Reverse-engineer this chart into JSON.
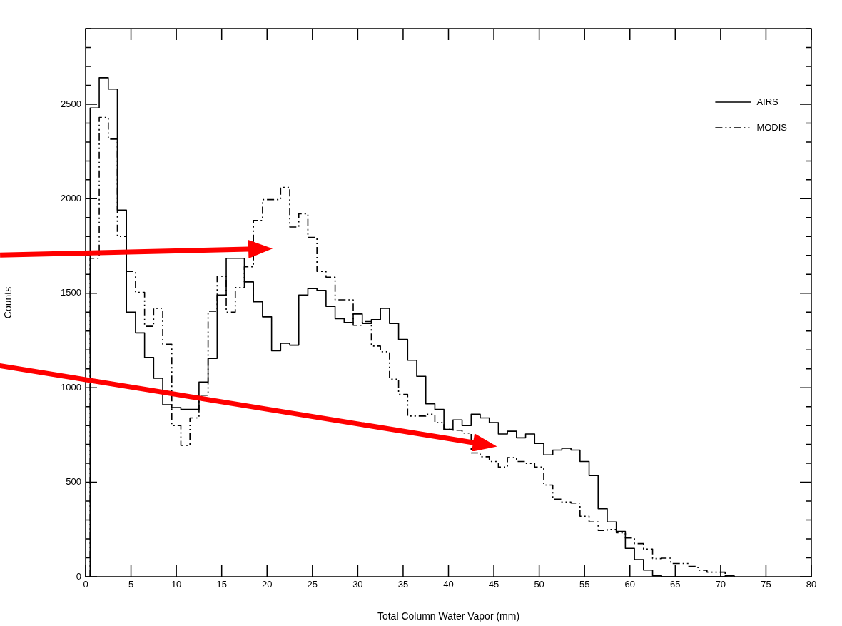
{
  "chart_data": {
    "type": "histogram",
    "xlabel": "Total Column Water Vapor (mm)",
    "ylabel": "Counts",
    "legend": "top right",
    "bins": [
      0.5,
      1.5,
      2.5,
      3.5,
      4.5,
      5.5,
      6.5,
      7.5,
      8.5,
      9.5,
      10.5,
      11.5,
      12.5,
      13.5,
      14.5,
      15.5,
      16.5,
      17.5,
      18.5,
      19.5,
      20.5,
      21.5,
      22.5,
      23.5,
      24.5,
      25.5,
      26.5,
      27.5,
      28.5,
      29.5,
      30.5,
      31.5,
      32.5,
      33.5,
      34.5,
      35.5,
      36.5,
      37.5,
      38.5,
      39.5,
      40.5,
      41.5,
      42.5,
      43.5,
      44.5,
      45.5,
      46.5,
      47.5,
      48.5,
      49.5,
      50.5,
      51.5,
      52.5,
      53.5,
      54.5,
      55.5,
      56.5,
      57.5,
      58.5,
      59.5,
      60.5,
      61.5,
      62.5,
      63.5,
      64.5,
      65.5,
      66.5,
      67.5,
      68.5,
      69.5,
      70.5,
      71.5
    ],
    "series": [
      {
        "name": "AIRS",
        "color": "#000000",
        "line_style": "solid",
        "values": [
          2480,
          2640,
          2580,
          1940,
          1400,
          1290,
          1160,
          1050,
          910,
          895,
          885,
          885,
          1030,
          1155,
          1490,
          1685,
          1685,
          1560,
          1455,
          1375,
          1195,
          1235,
          1225,
          1490,
          1525,
          1515,
          1430,
          1365,
          1345,
          1390,
          1340,
          1360,
          1420,
          1340,
          1255,
          1145,
          1060,
          915,
          885,
          780,
          830,
          800,
          860,
          840,
          815,
          755,
          770,
          735,
          755,
          705,
          645,
          670,
          680,
          670,
          610,
          535,
          360,
          290,
          240,
          150,
          90,
          35,
          5,
          0,
          0,
          0,
          0,
          0,
          0,
          0,
          5
        ]
      },
      {
        "name": "MODIS",
        "color": "#000000",
        "line_style": "dashdot",
        "values": [
          1685,
          2430,
          2315,
          1800,
          1615,
          1505,
          1325,
          1420,
          1230,
          800,
          695,
          840,
          960,
          1405,
          1590,
          1400,
          1530,
          1640,
          1885,
          1995,
          1995,
          2060,
          1850,
          1920,
          1795,
          1615,
          1585,
          1465,
          1465,
          1330,
          1350,
          1220,
          1190,
          1045,
          965,
          850,
          850,
          860,
          815,
          780,
          775,
          760,
          655,
          635,
          610,
          580,
          630,
          610,
          600,
          580,
          485,
          410,
          395,
          390,
          320,
          290,
          245,
          250,
          232,
          205,
          175,
          146,
          96,
          98,
          70,
          70,
          55,
          34,
          24,
          24,
          5
        ]
      }
    ],
    "xlim": [
      0,
      80
    ],
    "xticks": [
      0,
      5,
      10,
      15,
      20,
      25,
      30,
      35,
      40,
      45,
      50,
      55,
      60,
      65,
      70,
      75,
      80
    ],
    "ylim": [
      0,
      2900
    ],
    "yticks": [
      0,
      {
        "value": 100,
        "label": null
      },
      {
        "value": 200,
        "label": null
      },
      {
        "value": 300,
        "label": null
      },
      {
        "value": 400,
        "label": null
      },
      500,
      {
        "value": 600,
        "label": null
      },
      {
        "value": 700,
        "label": null
      },
      {
        "value": 800,
        "label": null
      },
      {
        "value": 900,
        "label": null
      },
      1000,
      {
        "value": 1100,
        "label": null
      },
      {
        "value": 1200,
        "label": null
      },
      {
        "value": 1300,
        "label": null
      },
      {
        "value": 1400,
        "label": null
      },
      1500,
      {
        "value": 1600,
        "label": null
      },
      {
        "value": 1700,
        "label": null
      },
      {
        "value": 1800,
        "label": null
      },
      {
        "value": 1900,
        "label": null
      },
      2000,
      {
        "value": 2100,
        "label": null
      },
      {
        "value": 2200,
        "label": null
      },
      {
        "value": 2300,
        "label": null
      },
      {
        "value": 2400,
        "label": null
      },
      2500,
      {
        "value": 2600,
        "label": null
      },
      {
        "value": 2700,
        "label": null
      },
      {
        "value": 2800,
        "label": null
      },
      {
        "value": 2900,
        "label": null
      }
    ]
  }
}
